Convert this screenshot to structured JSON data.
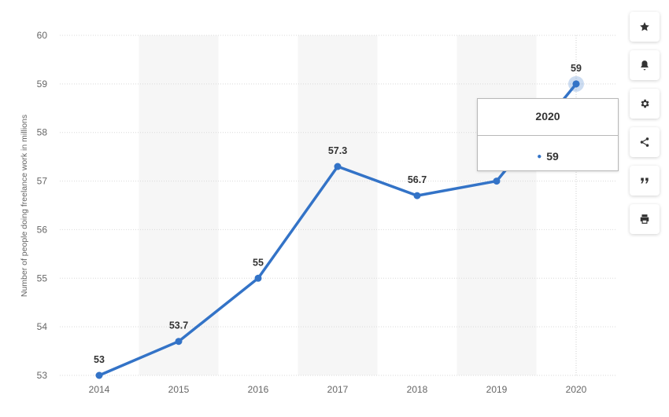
{
  "chart_data": {
    "type": "line",
    "title": "",
    "xlabel": "",
    "ylabel": "Number of people doing freelance work in millions",
    "categories": [
      "2014",
      "2015",
      "2016",
      "2017",
      "2018",
      "2019",
      "2020"
    ],
    "series": [
      {
        "values": [
          53,
          53.7,
          55,
          57.3,
          56.7,
          57,
          59
        ]
      }
    ],
    "data_labels": [
      "53",
      "53.7",
      "55",
      "57.3",
      "56.7",
      "",
      "59"
    ],
    "ylim": [
      53,
      60
    ],
    "yticks": [
      "53",
      "54",
      "55",
      "56",
      "57",
      "58",
      "59",
      "60"
    ],
    "grid": true,
    "line_color": "#3373c7",
    "highlighted_category": "2020"
  },
  "tooltip": {
    "title": "2020",
    "value": "59"
  },
  "toolbar": {
    "icons": [
      "star-icon",
      "bell-icon",
      "gear-icon",
      "share-icon",
      "quote-icon",
      "print-icon"
    ]
  }
}
